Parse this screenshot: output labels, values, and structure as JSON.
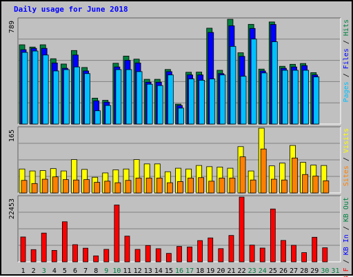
{
  "chart_data": [
    {
      "type": "bar",
      "title": "Daily usage for June 2018",
      "ymax_label": "789",
      "ylim": [
        0,
        789
      ],
      "ylabel_parts": [
        {
          "text": "Pages",
          "color": "#00c0ff"
        },
        {
          "text": " / ",
          "color": "#000000"
        },
        {
          "text": "Files",
          "color": "#0000ff"
        },
        {
          "text": " / ",
          "color": "#000000"
        },
        {
          "text": "Hits",
          "color": "#008040"
        }
      ],
      "categories": [
        "1",
        "2",
        "3",
        "4",
        "5",
        "6",
        "7",
        "8",
        "9",
        "10",
        "11",
        "12",
        "13",
        "14",
        "15",
        "16",
        "17",
        "18",
        "19",
        "20",
        "21",
        "22",
        "23",
        "24",
        "25",
        "26",
        "27",
        "28",
        "29",
        "30",
        "31"
      ],
      "series": [
        {
          "name": "Hits",
          "color": "#008040",
          "values": [
            597,
            580,
            597,
            492,
            452,
            554,
            426,
            195,
            179,
            458,
            512,
            489,
            337,
            337,
            411,
            150,
            390,
            391,
            722,
            405,
            789,
            537,
            751,
            414,
            769,
            435,
            450,
            456,
            387,
            0,
            0
          ]
        },
        {
          "name": "Files",
          "color": "#0000ff",
          "values": [
            560,
            570,
            570,
            460,
            420,
            520,
            400,
            175,
            165,
            430,
            480,
            460,
            315,
            315,
            395,
            140,
            370,
            370,
            690,
            380,
            740,
            510,
            720,
            400,
            750,
            420,
            430,
            440,
            370,
            0,
            0
          ]
        },
        {
          "name": "Pages",
          "color": "#00c0ff",
          "values": [
            540,
            550,
            520,
            400,
            410,
            430,
            380,
            100,
            140,
            410,
            410,
            395,
            300,
            290,
            370,
            120,
            340,
            330,
            340,
            370,
            585,
            360,
            640,
            385,
            620,
            405,
            405,
            405,
            355,
            0,
            0
          ]
        }
      ]
    },
    {
      "type": "bar",
      "ymax_label": "165",
      "ylim": [
        0,
        165
      ],
      "ylabel_parts": [
        {
          "text": "Sites",
          "color": "#ff8000"
        },
        {
          "text": " / ",
          "color": "#000000"
        },
        {
          "text": "Visits",
          "color": "#ffff00"
        }
      ],
      "series": [
        {
          "name": "Visits",
          "color": "#ffff00",
          "values": [
            61,
            56,
            57,
            62,
            56,
            85,
            60,
            40,
            51,
            59,
            61,
            85,
            74,
            74,
            54,
            63,
            61,
            70,
            67,
            66,
            63,
            118,
            56,
            165,
            69,
            76,
            121,
            78,
            71,
            70,
            0
          ]
        },
        {
          "name": "Sites",
          "color": "#ff8000",
          "values": [
            32,
            24,
            35,
            41,
            34,
            33,
            34,
            27,
            30,
            26,
            32,
            38,
            38,
            38,
            26,
            29,
            38,
            39,
            30,
            38,
            38,
            92,
            33,
            112,
            35,
            33,
            89,
            47,
            43,
            31,
            0
          ]
        }
      ]
    },
    {
      "type": "bar",
      "ymax_label": "22453",
      "ylim": [
        0,
        22453
      ],
      "ylabel_parts": [
        {
          "text": "KB F",
          "color": "#ff0000"
        },
        {
          "text": " / ",
          "color": "#000000"
        },
        {
          "text": "KB In",
          "color": "#0000ff"
        },
        {
          "text": " / ",
          "color": "#000000"
        },
        {
          "text": "KB Out",
          "color": "#008040"
        }
      ],
      "series": [
        {
          "name": "KB F",
          "color": "#ff0000",
          "values": [
            8620,
            4240,
            9980,
            3970,
            13900,
            5960,
            4740,
            2070,
            4330,
            19710,
            8920,
            4320,
            5680,
            4560,
            2940,
            5350,
            5160,
            7370,
            8300,
            4580,
            9150,
            22453,
            5810,
            4780,
            18330,
            7420,
            5750,
            3210,
            8530,
            4880,
            0
          ]
        }
      ]
    }
  ],
  "x_labels": [
    {
      "text": "1",
      "color": "#000000"
    },
    {
      "text": "2",
      "color": "#000000"
    },
    {
      "text": "3",
      "color": "#008040"
    },
    {
      "text": "4",
      "color": "#000000"
    },
    {
      "text": "5",
      "color": "#000000"
    },
    {
      "text": "6",
      "color": "#000000"
    },
    {
      "text": "7",
      "color": "#000000"
    },
    {
      "text": "8",
      "color": "#000000"
    },
    {
      "text": "9",
      "color": "#008040"
    },
    {
      "text": "10",
      "color": "#008040"
    },
    {
      "text": "11",
      "color": "#000000"
    },
    {
      "text": "12",
      "color": "#000000"
    },
    {
      "text": "13",
      "color": "#000000"
    },
    {
      "text": "14",
      "color": "#000000"
    },
    {
      "text": "15",
      "color": "#000000"
    },
    {
      "text": "16",
      "color": "#008040"
    },
    {
      "text": "17",
      "color": "#008040"
    },
    {
      "text": "18",
      "color": "#000000"
    },
    {
      "text": "19",
      "color": "#000000"
    },
    {
      "text": "20",
      "color": "#000000"
    },
    {
      "text": "21",
      "color": "#000000"
    },
    {
      "text": "22",
      "color": "#000000"
    },
    {
      "text": "23",
      "color": "#008040"
    },
    {
      "text": "24",
      "color": "#008040"
    },
    {
      "text": "25",
      "color": "#000000"
    },
    {
      "text": "26",
      "color": "#000000"
    },
    {
      "text": "27",
      "color": "#000000"
    },
    {
      "text": "28",
      "color": "#000000"
    },
    {
      "text": "29",
      "color": "#000000"
    },
    {
      "text": "30",
      "color": "#008040"
    },
    {
      "text": "31",
      "color": "#008040"
    }
  ],
  "colors": {
    "background": "#c0c0c0",
    "panel": "#c0c0c0",
    "grid": "#808080",
    "title": "#0000ff",
    "axis_text": "#000000"
  }
}
